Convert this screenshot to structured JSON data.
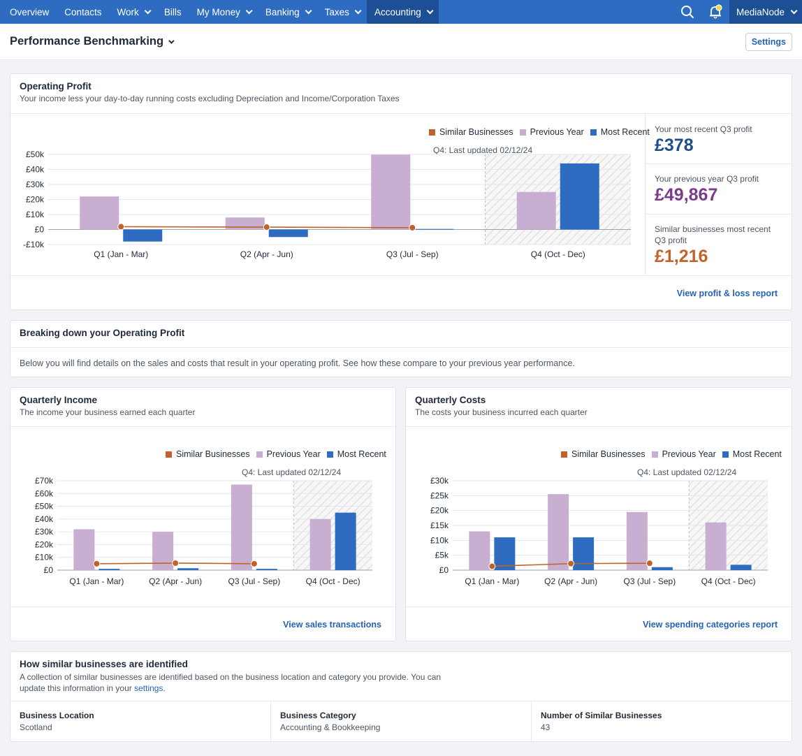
{
  "nav": {
    "items": [
      {
        "label": "Overview",
        "chevron": false
      },
      {
        "label": "Contacts",
        "chevron": false
      },
      {
        "label": "Work",
        "chevron": true
      },
      {
        "label": "Bills",
        "chevron": false
      },
      {
        "label": "My Money",
        "chevron": true
      },
      {
        "label": "Banking",
        "chevron": true
      },
      {
        "label": "Taxes",
        "chevron": true
      },
      {
        "label": "Accounting",
        "chevron": true,
        "active": true
      }
    ],
    "user": "MediaNode"
  },
  "header": {
    "title": "Performance Benchmarking",
    "settings_label": "Settings"
  },
  "legend": {
    "similar": "Similar Businesses",
    "previous": "Previous Year",
    "recent": "Most Recent"
  },
  "colors": {
    "similar": "#c0622a",
    "previous": "#c8aed1",
    "recent": "#2d6cc0",
    "recent_text": "#1f4e8c",
    "previous_text": "#7a3a8e"
  },
  "operating": {
    "title": "Operating Profit",
    "subtitle": "Your income less your day-to-day running costs excluding Depreciation and Income/Corporation Taxes",
    "updated": "Q4: Last updated 02/12/24",
    "link": "View profit & loss report",
    "stats": [
      {
        "label": "Your most recent Q3 profit",
        "value": "£378",
        "color": "recent_text"
      },
      {
        "label": "Your previous year Q3 profit",
        "value": "£49,867",
        "color": "previous_text"
      },
      {
        "label": "Similar businesses most recent Q3 profit",
        "value": "£1,216",
        "color": "similar"
      }
    ]
  },
  "breakdown": {
    "title": "Breaking down your Operating Profit",
    "text": "Below you will find details on the sales and costs that result in your operating profit. See how these compare to your previous year performance."
  },
  "income": {
    "title": "Quarterly Income",
    "subtitle": "The income your business earned each quarter",
    "updated": "Q4: Last updated 02/12/24",
    "link": "View sales transactions"
  },
  "costs": {
    "title": "Quarterly Costs",
    "subtitle": "The costs your business incurred each quarter",
    "updated": "Q4: Last updated 02/12/24",
    "link": "View spending categories report"
  },
  "similar_info": {
    "title": "How similar businesses are identified",
    "text": "A collection of similar businesses are identified based on the business location and category you provide. You can update this information in your",
    "link": "settings",
    "fields": [
      {
        "label": "Business Location",
        "value": "Scotland"
      },
      {
        "label": "Business Category",
        "value": "Accounting & Bookkeeping"
      },
      {
        "label": "Number of Similar Businesses",
        "value": "43"
      }
    ]
  },
  "chart_data": [
    {
      "id": "operating",
      "type": "bar",
      "title": "Operating Profit",
      "categories": [
        "Q1 (Jan - Mar)",
        "Q2 (Apr - Jun)",
        "Q3 (Jul - Sep)",
        "Q4 (Oct - Dec)"
      ],
      "ylim": [
        -10000,
        50000
      ],
      "yticks": [
        -10000,
        0,
        10000,
        20000,
        30000,
        40000,
        50000
      ],
      "yticklabels": [
        "-£10k",
        "£0",
        "£10k",
        "£20k",
        "£30k",
        "£40k",
        "£50k"
      ],
      "series": [
        {
          "name": "Previous Year",
          "type": "bar",
          "values": [
            22000,
            8000,
            49867,
            25000
          ]
        },
        {
          "name": "Most Recent",
          "type": "bar",
          "values": [
            -8000,
            -5000,
            378,
            44000
          ]
        },
        {
          "name": "Similar Businesses",
          "type": "line",
          "values": [
            1900,
            1600,
            1216,
            null
          ]
        }
      ],
      "shaded_category": "Q4 (Oct - Dec)"
    },
    {
      "id": "income",
      "type": "bar",
      "title": "Quarterly Income",
      "categories": [
        "Q1 (Jan - Mar)",
        "Q2 (Apr - Jun)",
        "Q3 (Jul - Sep)",
        "Q4 (Oct - Dec)"
      ],
      "ylim": [
        0,
        70000
      ],
      "yticks": [
        0,
        10000,
        20000,
        30000,
        40000,
        50000,
        60000,
        70000
      ],
      "yticklabels": [
        "£0",
        "£10k",
        "£20k",
        "£30k",
        "£40k",
        "£50k",
        "£60k",
        "£70k"
      ],
      "series": [
        {
          "name": "Previous Year",
          "type": "bar",
          "values": [
            32000,
            30000,
            67000,
            40000
          ]
        },
        {
          "name": "Most Recent",
          "type": "bar",
          "values": [
            1000,
            1500,
            1000,
            45000
          ]
        },
        {
          "name": "Similar Businesses",
          "type": "line",
          "values": [
            5000,
            5500,
            5000,
            null
          ]
        }
      ],
      "shaded_category": "Q4 (Oct - Dec)"
    },
    {
      "id": "costs",
      "type": "bar",
      "title": "Quarterly Costs",
      "categories": [
        "Q1 (Jan - Mar)",
        "Q2 (Apr - Jun)",
        "Q3 (Jul - Sep)",
        "Q4 (Oct - Dec)"
      ],
      "ylim": [
        0,
        30000
      ],
      "yticks": [
        0,
        5000,
        10000,
        15000,
        20000,
        25000,
        30000
      ],
      "yticklabels": [
        "£0",
        "£5k",
        "£10k",
        "£15k",
        "£20k",
        "£25k",
        "£30k"
      ],
      "series": [
        {
          "name": "Previous Year",
          "type": "bar",
          "values": [
            13000,
            25500,
            19500,
            16000
          ]
        },
        {
          "name": "Most Recent",
          "type": "bar",
          "values": [
            11000,
            11000,
            1000,
            1800
          ]
        },
        {
          "name": "Similar Businesses",
          "type": "line",
          "values": [
            1300,
            2200,
            2300,
            null
          ]
        }
      ],
      "shaded_category": "Q4 (Oct - Dec)"
    }
  ]
}
